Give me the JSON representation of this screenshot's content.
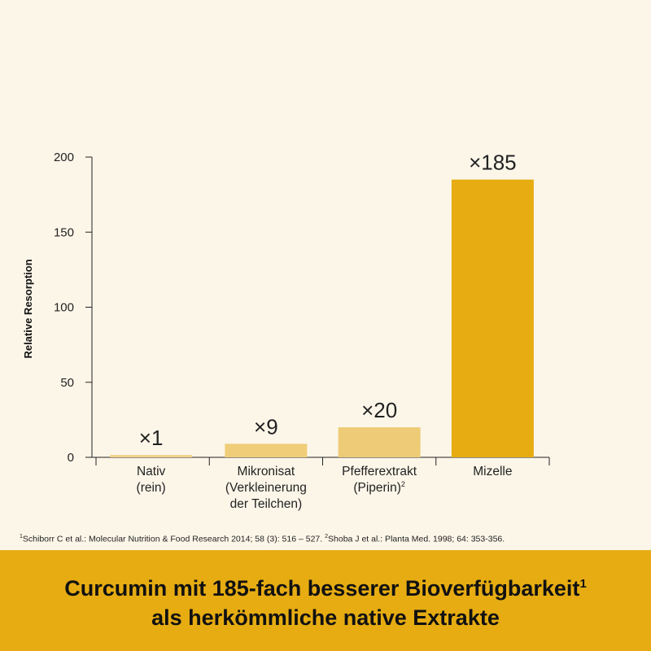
{
  "chart_data": {
    "type": "bar",
    "ylabel": "Relative Resorption",
    "ylim": [
      0,
      200
    ],
    "yticks": [
      0,
      50,
      100,
      150,
      200
    ],
    "categories": [
      {
        "lines": [
          "Nativ",
          "(rein)"
        ],
        "sup": ""
      },
      {
        "lines": [
          "Mikronisat",
          "(Verkleinerung",
          "der Teilchen)"
        ],
        "sup": ""
      },
      {
        "lines": [
          "Pfefferextrakt",
          "(Piperin)"
        ],
        "sup": "2"
      },
      {
        "lines": [
          "Mizelle"
        ],
        "sup": ""
      }
    ],
    "values": [
      1,
      9,
      20,
      185
    ],
    "data_labels": [
      "×1",
      "×9",
      "×20",
      "×185"
    ],
    "colors": [
      "#f2d48a",
      "#f0cd78",
      "#eecb76",
      "#e6ac12"
    ],
    "grid": false
  },
  "footnote": {
    "sup1": "1",
    "ref1": "Schiborr C et al.: Molecular Nutrition & Food Research 2014; 58 (3): 516 – 527. ",
    "sup2": "2",
    "ref2": "Shoba J et al.: Planta Med. 1998; 64: 353-356."
  },
  "banner": {
    "line1": "Curcumin mit 185-fach besserer Bioverfügbarkeit",
    "line1_sup": "1",
    "line2": "als herkömmliche native Extrakte"
  },
  "colors": {
    "background": "#fcf6e9",
    "banner": "#e6ac12"
  }
}
